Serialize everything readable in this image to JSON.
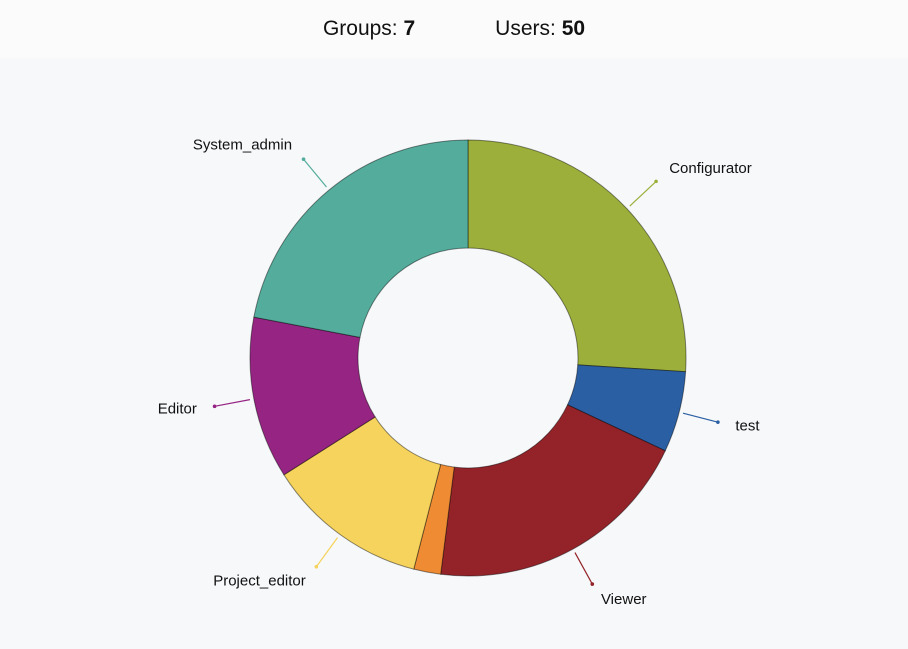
{
  "summary": {
    "groups_label": "Groups:",
    "groups": 7,
    "users_label": "Users:",
    "users": 50
  },
  "chart_data": {
    "type": "donut",
    "categories": [
      "Configurator",
      "test",
      "Viewer",
      null,
      "Project_editor",
      "Editor",
      "System_admin"
    ],
    "values": [
      13,
      3,
      10,
      1,
      6,
      6,
      11
    ],
    "colors": [
      "#9caf3a",
      "#2b5fa3",
      "#932328",
      "#ef8c33",
      "#f6d35c",
      "#962483",
      "#54ad9c"
    ]
  }
}
